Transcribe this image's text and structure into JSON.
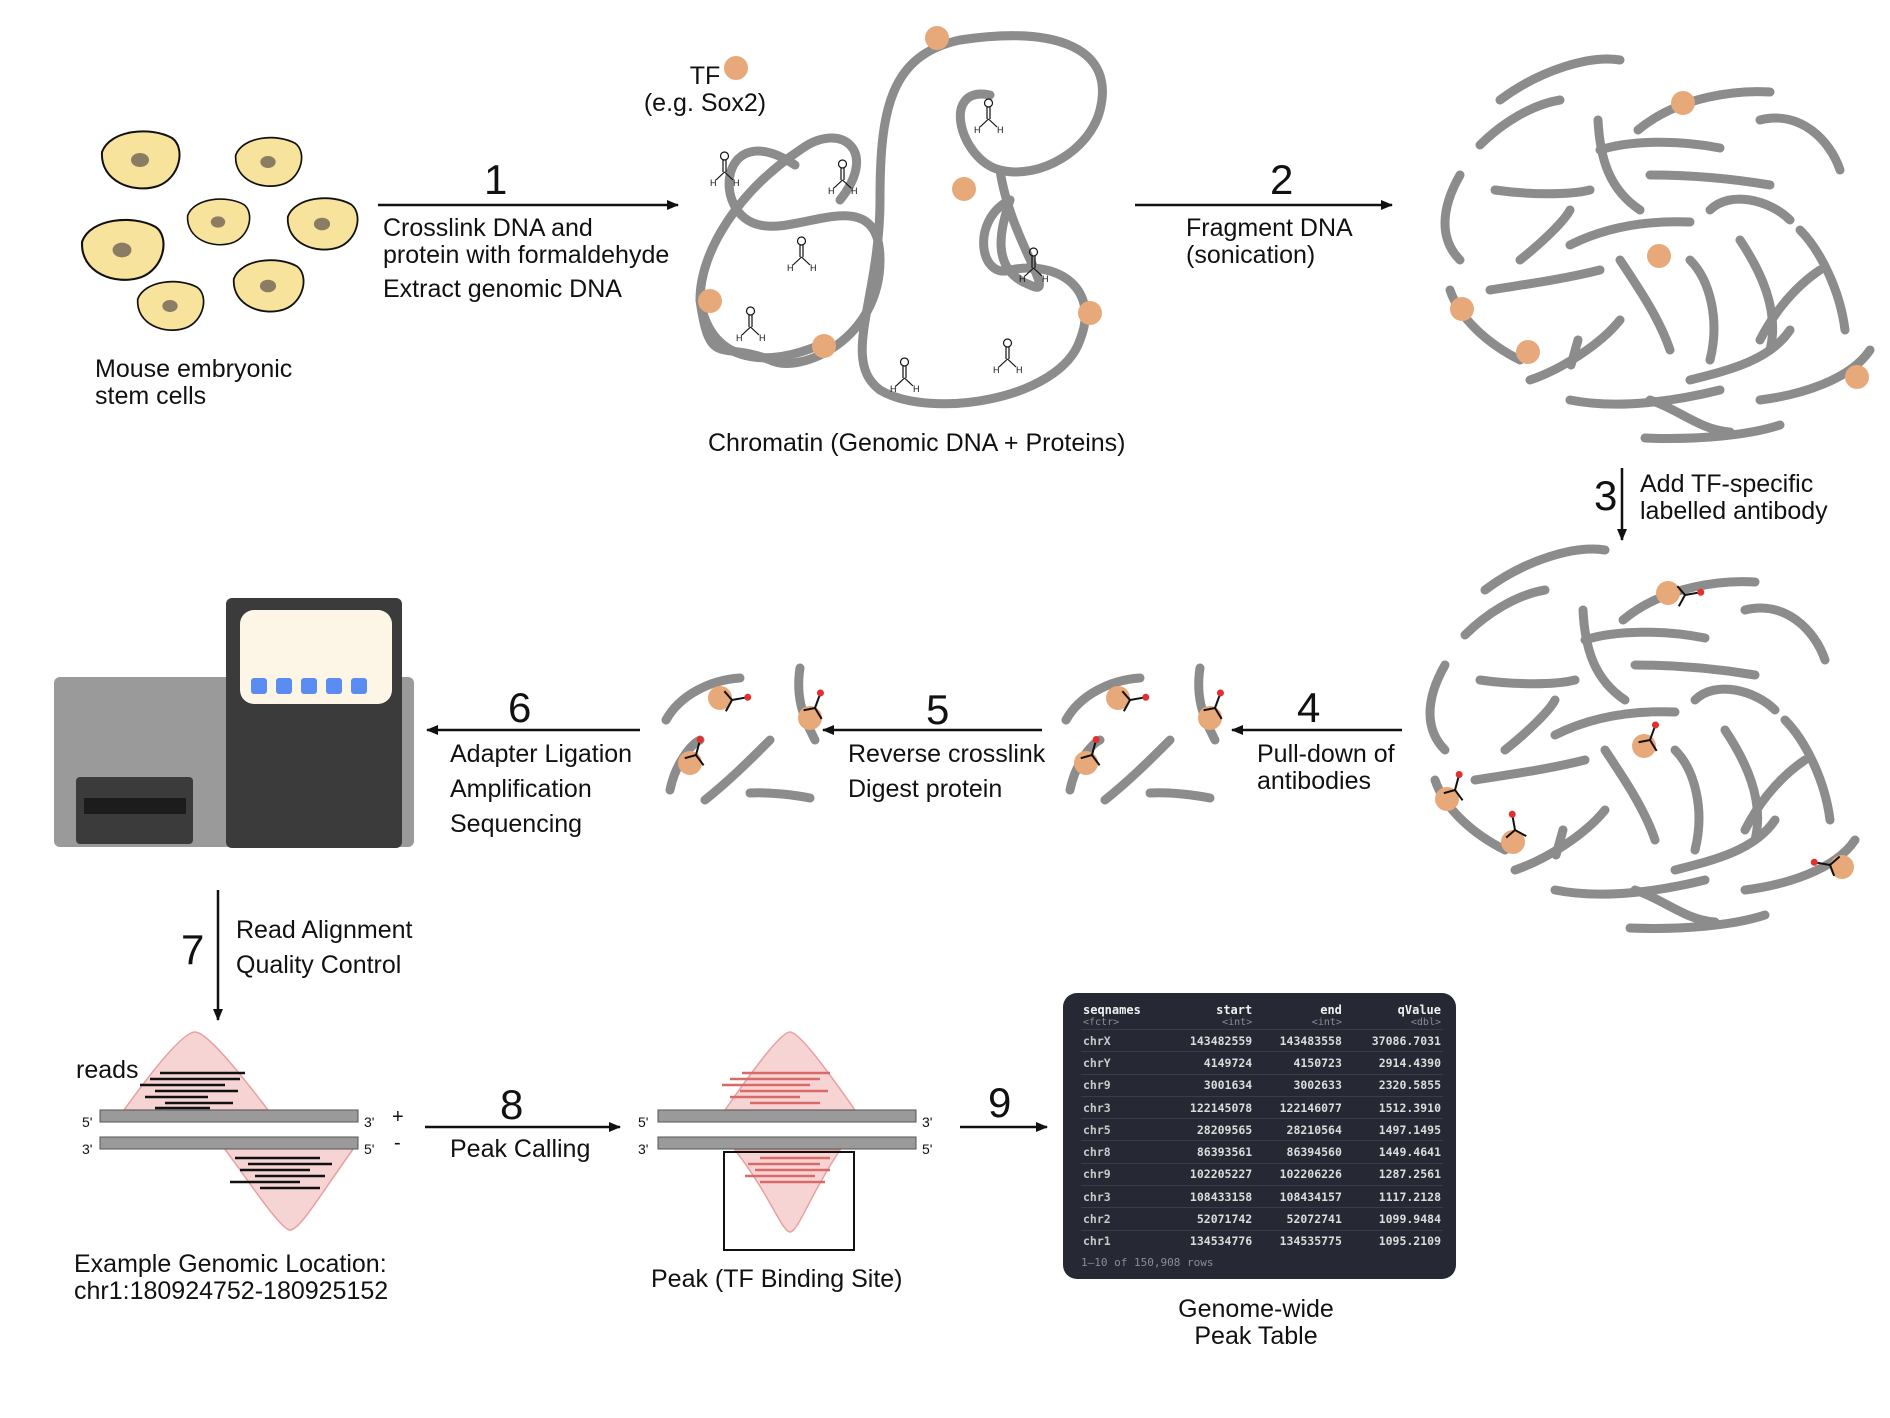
{
  "labels": {
    "cells": [
      "Mouse embryonic",
      "stem cells"
    ],
    "tf": [
      "TF",
      "(e.g. Sox2)"
    ],
    "chromatin": "Chromatin (Genomic DNA + Proteins)",
    "reads": "reads",
    "example_location": [
      "Example Genomic Location:",
      "chr1:180924752-180925152"
    ],
    "peak": "Peak (TF Binding Site)",
    "table_caption": [
      "Genome-wide",
      "Peak Table"
    ]
  },
  "steps": [
    {
      "number": "1",
      "lines": [
        "Crosslink DNA and",
        "protein with formaldehyde",
        "Extract genomic DNA"
      ]
    },
    {
      "number": "2",
      "lines": [
        "Fragment DNA",
        "(sonication)"
      ]
    },
    {
      "number": "3",
      "lines": [
        "Add TF-specific",
        "labelled antibody"
      ]
    },
    {
      "number": "4",
      "lines": [
        "Pull-down of",
        "antibodies"
      ]
    },
    {
      "number": "5",
      "lines": [
        "Reverse crosslink",
        "Digest protein"
      ]
    },
    {
      "number": "6",
      "lines": [
        "Adapter Ligation",
        "Amplification",
        "Sequencing"
      ]
    },
    {
      "number": "7",
      "lines": [
        "Read Alignment",
        "Quality Control"
      ]
    },
    {
      "number": "8",
      "lines": [
        "Peak Calling"
      ]
    },
    {
      "number": "9",
      "lines": []
    }
  ],
  "strand_labels": {
    "five": "5'",
    "three": "3'",
    "plus": "+",
    "minus": "-"
  },
  "table": {
    "columns": [
      {
        "name": "seqnames",
        "type": "<fctr>"
      },
      {
        "name": "start",
        "type": "<int>"
      },
      {
        "name": "end",
        "type": "<int>"
      },
      {
        "name": "qValue",
        "type": "<dbl>"
      }
    ],
    "rows": [
      [
        "chrX",
        "143482559",
        "143483558",
        "37086.7031"
      ],
      [
        "chrY",
        "4149724",
        "4150723",
        "2914.4390"
      ],
      [
        "chr9",
        "3001634",
        "3002633",
        "2320.5855"
      ],
      [
        "chr3",
        "122145078",
        "122146077",
        "1512.3910"
      ],
      [
        "chr5",
        "28209565",
        "28210564",
        "1497.1495"
      ],
      [
        "chr8",
        "86393561",
        "86394560",
        "1449.4641"
      ],
      [
        "chr9",
        "102205227",
        "102206226",
        "1287.2561"
      ],
      [
        "chr3",
        "108433158",
        "108434157",
        "1117.2128"
      ],
      [
        "chr2",
        "52071742",
        "52072741",
        "1099.9484"
      ],
      [
        "chr1",
        "134534776",
        "134535775",
        "1095.2109"
      ]
    ],
    "footer": "1–10 of 150,908 rows"
  },
  "colors": {
    "dna": "#8c8c8c",
    "cell_fill": "#f7e39b",
    "nucleus": "#8b7d63",
    "tf": "#e8a97a",
    "antibody_tip": "#e03030",
    "peak_fill": "#f7d4d4",
    "sequencer_dark": "#3b3b3b",
    "sequencer_light": "#9a9a9a",
    "screen": "#fdf6e6",
    "screen_dots": "#5b8cf2",
    "table_bg": "#262933"
  }
}
